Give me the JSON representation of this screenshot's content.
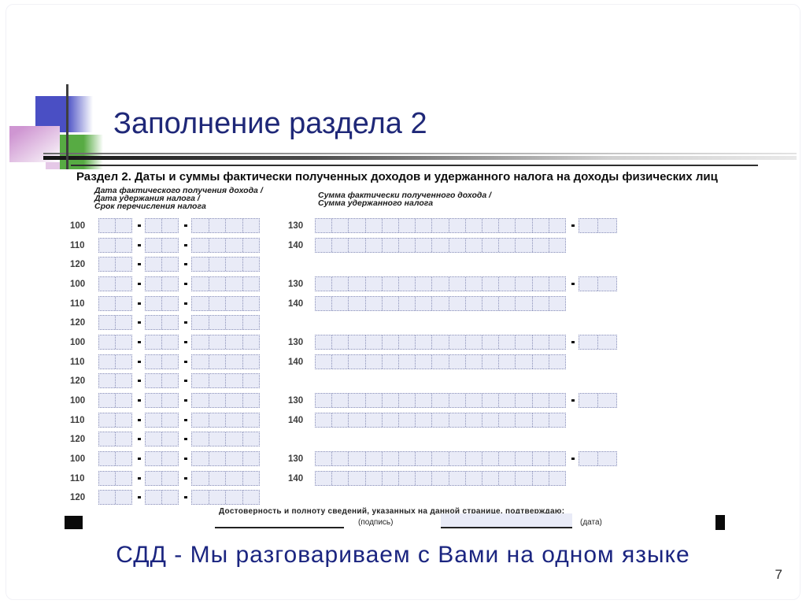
{
  "slide": {
    "title": "Заполнение раздела 2",
    "footer": "СДД - Мы разговариваем с Вами на одном языке",
    "page_number": "7"
  },
  "form": {
    "heading": "Раздел 2. Даты и суммы фактически полученных доходов и удержанного налога на доходы физических лиц",
    "left_column_header": [
      "Дата фактического получения дохода /",
      "Дата удержания налога /",
      "Срок перечисления налога"
    ],
    "right_column_header": [
      "Сумма фактически полученного дохода /",
      "Сумма удержанного налога"
    ],
    "group_count": 5,
    "date_row_labels": [
      "100",
      "110",
      "120"
    ],
    "sum_row_labels": [
      "130",
      "140"
    ],
    "date_box_cells": [
      2,
      2,
      4
    ],
    "sum_box_cells": 15,
    "kopeck_box_cells": 2,
    "confirmation_text": "Достоверность и полноту сведений, указанных на данной странице, подтверждаю:",
    "signature_caption": "(подпись)",
    "date_caption": "(дата)"
  },
  "colors": {
    "title_text": "#1f2878",
    "footer_text": "#1b2580",
    "field_fill": "#e9ebf7",
    "field_border": "#8a90b8",
    "accent_blue_square": "#4a4fc4",
    "accent_green_square": "#57ab43",
    "accent_pink_square": "#cf96d2"
  }
}
